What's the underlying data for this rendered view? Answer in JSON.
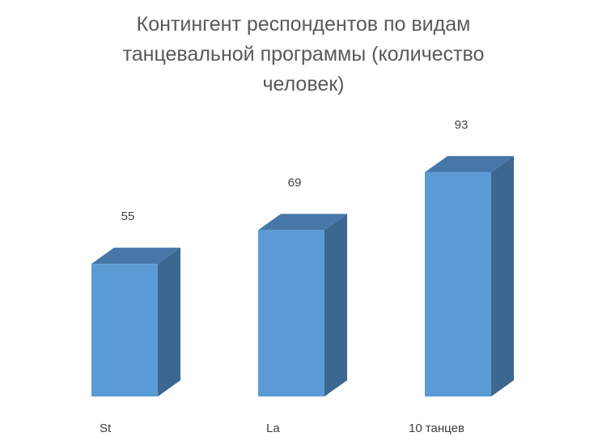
{
  "chart_data": {
    "type": "bar3d",
    "title": "Контингент респондентов по видам танцевальной программы (количество человек)",
    "categories": [
      "St",
      "La",
      "10 танцев"
    ],
    "values": [
      55,
      69,
      93
    ],
    "color": "#5b9bd5"
  }
}
